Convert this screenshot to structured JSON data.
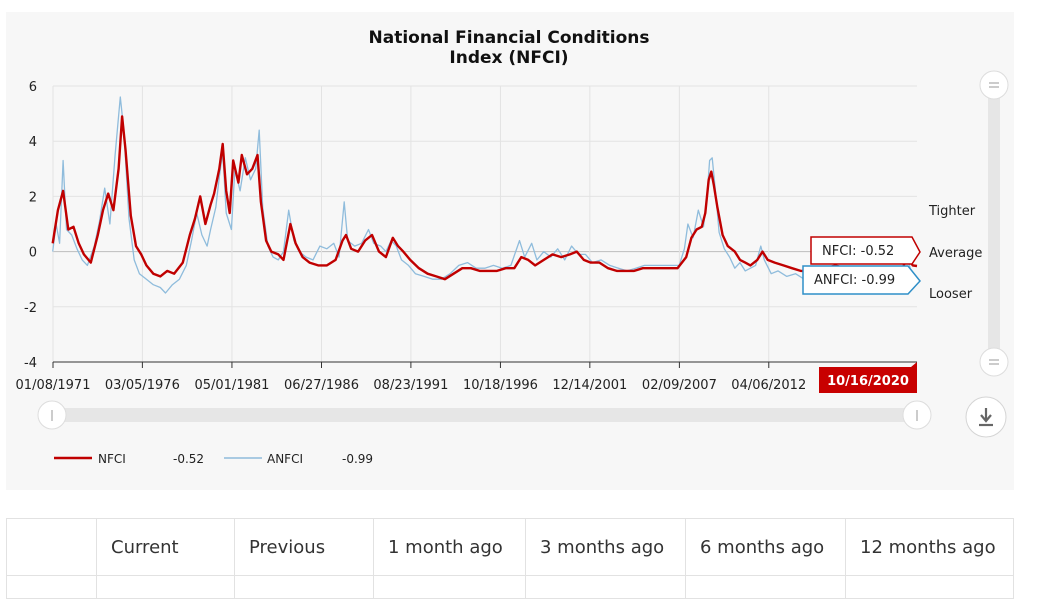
{
  "chart_data": {
    "type": "line",
    "title": [
      "National Financial Conditions",
      "Index (NFCI)"
    ],
    "ylim": [
      -4,
      6
    ],
    "yticks": [
      -4,
      -2,
      0,
      2,
      4,
      6
    ],
    "xlim": [
      1971.02,
      2020.8
    ],
    "xtick_labels": [
      "01/08/1971",
      "03/05/1976",
      "05/01/1981",
      "06/27/1986",
      "08/23/1991",
      "10/18/1996",
      "12/14/2001",
      "02/09/2007",
      "04/06/2012"
    ],
    "xtick_positions": [
      1971.02,
      1976.17,
      1981.33,
      1986.49,
      1991.64,
      1996.8,
      2001.95,
      2007.11,
      2012.26
    ],
    "grid": true,
    "right_labels": [
      "Tighter",
      "Average",
      "Looser"
    ],
    "current_date": "10/16/2020",
    "series": [
      {
        "name": "NFCI",
        "color": "#c00000",
        "latest": "-0.52",
        "points": [
          [
            1971.0,
            0.3
          ],
          [
            1971.3,
            1.5
          ],
          [
            1971.6,
            2.2
          ],
          [
            1971.9,
            0.8
          ],
          [
            1972.2,
            0.9
          ],
          [
            1972.5,
            0.3
          ],
          [
            1972.8,
            -0.1
          ],
          [
            1973.2,
            -0.4
          ],
          [
            1973.6,
            0.6
          ],
          [
            1973.9,
            1.5
          ],
          [
            1974.2,
            2.1
          ],
          [
            1974.5,
            1.5
          ],
          [
            1974.8,
            3.0
          ],
          [
            1975.0,
            4.9
          ],
          [
            1975.2,
            3.7
          ],
          [
            1975.5,
            1.3
          ],
          [
            1975.8,
            0.2
          ],
          [
            1976.1,
            -0.1
          ],
          [
            1976.4,
            -0.5
          ],
          [
            1976.8,
            -0.8
          ],
          [
            1977.2,
            -0.9
          ],
          [
            1977.6,
            -0.7
          ],
          [
            1978.0,
            -0.8
          ],
          [
            1978.5,
            -0.4
          ],
          [
            1978.9,
            0.6
          ],
          [
            1979.2,
            1.2
          ],
          [
            1979.5,
            2.0
          ],
          [
            1979.8,
            1.0
          ],
          [
            1980.1,
            1.7
          ],
          [
            1980.3,
            2.1
          ],
          [
            1980.6,
            3.0
          ],
          [
            1980.8,
            3.9
          ],
          [
            1981.0,
            2.2
          ],
          [
            1981.2,
            1.4
          ],
          [
            1981.4,
            3.3
          ],
          [
            1981.7,
            2.5
          ],
          [
            1981.9,
            3.5
          ],
          [
            1982.2,
            2.8
          ],
          [
            1982.5,
            3.0
          ],
          [
            1982.8,
            3.5
          ],
          [
            1983.0,
            1.8
          ],
          [
            1983.3,
            0.4
          ],
          [
            1983.6,
            0.0
          ],
          [
            1984.0,
            -0.1
          ],
          [
            1984.3,
            -0.3
          ],
          [
            1984.7,
            1.0
          ],
          [
            1985.0,
            0.3
          ],
          [
            1985.4,
            -0.2
          ],
          [
            1985.8,
            -0.4
          ],
          [
            1986.3,
            -0.5
          ],
          [
            1986.8,
            -0.5
          ],
          [
            1987.3,
            -0.3
          ],
          [
            1987.7,
            0.4
          ],
          [
            1987.9,
            0.6
          ],
          [
            1988.2,
            0.1
          ],
          [
            1988.6,
            0.0
          ],
          [
            1989.0,
            0.4
          ],
          [
            1989.4,
            0.6
          ],
          [
            1989.8,
            0.0
          ],
          [
            1990.2,
            -0.2
          ],
          [
            1990.6,
            0.5
          ],
          [
            1990.9,
            0.2
          ],
          [
            1991.2,
            0.0
          ],
          [
            1991.6,
            -0.3
          ],
          [
            1992.1,
            -0.6
          ],
          [
            1992.6,
            -0.8
          ],
          [
            1993.1,
            -0.9
          ],
          [
            1993.6,
            -1.0
          ],
          [
            1994.1,
            -0.8
          ],
          [
            1994.6,
            -0.6
          ],
          [
            1995.1,
            -0.6
          ],
          [
            1995.6,
            -0.7
          ],
          [
            1996.1,
            -0.7
          ],
          [
            1996.6,
            -0.7
          ],
          [
            1997.1,
            -0.6
          ],
          [
            1997.6,
            -0.6
          ],
          [
            1998.0,
            -0.2
          ],
          [
            1998.4,
            -0.3
          ],
          [
            1998.8,
            -0.5
          ],
          [
            1999.3,
            -0.3
          ],
          [
            1999.8,
            -0.1
          ],
          [
            2000.3,
            -0.2
          ],
          [
            2000.8,
            -0.1
          ],
          [
            2001.2,
            0.0
          ],
          [
            2001.6,
            -0.3
          ],
          [
            2002.0,
            -0.4
          ],
          [
            2002.5,
            -0.4
          ],
          [
            2003.0,
            -0.6
          ],
          [
            2003.5,
            -0.7
          ],
          [
            2004.0,
            -0.7
          ],
          [
            2004.5,
            -0.7
          ],
          [
            2005.0,
            -0.6
          ],
          [
            2005.5,
            -0.6
          ],
          [
            2006.0,
            -0.6
          ],
          [
            2006.5,
            -0.6
          ],
          [
            2007.0,
            -0.6
          ],
          [
            2007.5,
            -0.2
          ],
          [
            2007.8,
            0.5
          ],
          [
            2008.1,
            0.8
          ],
          [
            2008.4,
            0.9
          ],
          [
            2008.6,
            1.4
          ],
          [
            2008.8,
            2.6
          ],
          [
            2008.95,
            2.9
          ],
          [
            2009.1,
            2.4
          ],
          [
            2009.3,
            1.6
          ],
          [
            2009.6,
            0.6
          ],
          [
            2009.9,
            0.2
          ],
          [
            2010.3,
            0.0
          ],
          [
            2010.6,
            -0.3
          ],
          [
            2010.9,
            -0.4
          ],
          [
            2011.2,
            -0.5
          ],
          [
            2011.6,
            -0.3
          ],
          [
            2011.9,
            0.0
          ],
          [
            2012.2,
            -0.3
          ],
          [
            2012.6,
            -0.4
          ],
          [
            2013.1,
            -0.5
          ],
          [
            2013.6,
            -0.6
          ],
          [
            2014.1,
            -0.7
          ],
          [
            2014.6,
            -0.7
          ],
          [
            2015.1,
            -0.7
          ],
          [
            2015.6,
            -0.6
          ],
          [
            2016.1,
            -0.5
          ],
          [
            2016.6,
            -0.6
          ],
          [
            2017.1,
            -0.7
          ],
          [
            2017.6,
            -0.8
          ],
          [
            2018.1,
            -0.8
          ],
          [
            2018.6,
            -0.7
          ],
          [
            2019.1,
            -0.6
          ],
          [
            2019.6,
            -0.6
          ],
          [
            2020.0,
            -0.6
          ],
          [
            2020.2,
            -0.1
          ],
          [
            2020.35,
            -0.3
          ],
          [
            2020.55,
            -0.5
          ],
          [
            2020.8,
            -0.52
          ]
        ]
      },
      {
        "name": "ANFCI",
        "color": "#8fbcdc",
        "latest": "-0.99",
        "points": [
          [
            1971.0,
            0.0
          ],
          [
            1971.2,
            1.0
          ],
          [
            1971.4,
            0.3
          ],
          [
            1971.6,
            3.3
          ],
          [
            1971.8,
            0.8
          ],
          [
            1972.1,
            0.6
          ],
          [
            1972.4,
            0.1
          ],
          [
            1972.7,
            -0.3
          ],
          [
            1973.0,
            -0.5
          ],
          [
            1973.4,
            0.2
          ],
          [
            1973.7,
            1.1
          ],
          [
            1974.0,
            2.3
          ],
          [
            1974.3,
            1.0
          ],
          [
            1974.6,
            3.5
          ],
          [
            1974.9,
            5.6
          ],
          [
            1975.1,
            4.4
          ],
          [
            1975.4,
            1.2
          ],
          [
            1975.7,
            -0.3
          ],
          [
            1976.0,
            -0.8
          ],
          [
            1976.4,
            -1.0
          ],
          [
            1976.8,
            -1.2
          ],
          [
            1977.2,
            -1.3
          ],
          [
            1977.5,
            -1.5
          ],
          [
            1977.9,
            -1.2
          ],
          [
            1978.3,
            -1.0
          ],
          [
            1978.7,
            -0.5
          ],
          [
            1979.0,
            0.4
          ],
          [
            1979.3,
            1.4
          ],
          [
            1979.6,
            0.6
          ],
          [
            1979.9,
            0.2
          ],
          [
            1980.1,
            0.8
          ],
          [
            1980.4,
            1.6
          ],
          [
            1980.6,
            2.7
          ],
          [
            1980.8,
            3.6
          ],
          [
            1981.0,
            1.4
          ],
          [
            1981.3,
            0.8
          ],
          [
            1981.5,
            3.0
          ],
          [
            1981.8,
            2.2
          ],
          [
            1982.1,
            3.4
          ],
          [
            1982.4,
            2.6
          ],
          [
            1982.7,
            3.0
          ],
          [
            1982.9,
            4.4
          ],
          [
            1983.1,
            1.6
          ],
          [
            1983.4,
            0.2
          ],
          [
            1983.7,
            -0.2
          ],
          [
            1984.0,
            -0.3
          ],
          [
            1984.3,
            0.0
          ],
          [
            1984.6,
            1.5
          ],
          [
            1984.9,
            0.4
          ],
          [
            1985.2,
            0.0
          ],
          [
            1985.6,
            -0.2
          ],
          [
            1986.0,
            -0.3
          ],
          [
            1986.4,
            0.2
          ],
          [
            1986.8,
            0.1
          ],
          [
            1987.2,
            0.3
          ],
          [
            1987.5,
            -0.2
          ],
          [
            1987.8,
            1.8
          ],
          [
            1988.0,
            0.4
          ],
          [
            1988.4,
            0.2
          ],
          [
            1988.8,
            0.3
          ],
          [
            1989.2,
            0.8
          ],
          [
            1989.5,
            0.3
          ],
          [
            1989.9,
            0.2
          ],
          [
            1990.2,
            0.0
          ],
          [
            1990.5,
            0.4
          ],
          [
            1990.8,
            0.2
          ],
          [
            1991.1,
            -0.3
          ],
          [
            1991.5,
            -0.5
          ],
          [
            1991.9,
            -0.8
          ],
          [
            1992.4,
            -0.9
          ],
          [
            1992.9,
            -1.0
          ],
          [
            1993.4,
            -1.0
          ],
          [
            1993.9,
            -0.8
          ],
          [
            1994.4,
            -0.5
          ],
          [
            1994.9,
            -0.4
          ],
          [
            1995.4,
            -0.6
          ],
          [
            1995.9,
            -0.6
          ],
          [
            1996.4,
            -0.5
          ],
          [
            1996.9,
            -0.6
          ],
          [
            1997.4,
            -0.5
          ],
          [
            1997.9,
            0.4
          ],
          [
            1998.2,
            -0.2
          ],
          [
            1998.6,
            0.3
          ],
          [
            1998.9,
            -0.3
          ],
          [
            1999.3,
            0.0
          ],
          [
            1999.7,
            -0.2
          ],
          [
            2000.1,
            0.1
          ],
          [
            2000.5,
            -0.3
          ],
          [
            2000.9,
            0.2
          ],
          [
            2001.3,
            -0.1
          ],
          [
            2001.7,
            -0.1
          ],
          [
            2002.1,
            -0.4
          ],
          [
            2002.6,
            -0.3
          ],
          [
            2003.1,
            -0.5
          ],
          [
            2003.6,
            -0.6
          ],
          [
            2004.1,
            -0.7
          ],
          [
            2004.6,
            -0.6
          ],
          [
            2005.1,
            -0.5
          ],
          [
            2005.6,
            -0.5
          ],
          [
            2006.1,
            -0.5
          ],
          [
            2006.6,
            -0.5
          ],
          [
            2007.1,
            -0.5
          ],
          [
            2007.4,
            0.1
          ],
          [
            2007.6,
            1.0
          ],
          [
            2007.9,
            0.5
          ],
          [
            2008.2,
            1.5
          ],
          [
            2008.5,
            0.9
          ],
          [
            2008.7,
            2.0
          ],
          [
            2008.85,
            3.3
          ],
          [
            2009.0,
            3.4
          ],
          [
            2009.2,
            2.1
          ],
          [
            2009.4,
            0.7
          ],
          [
            2009.7,
            0.1
          ],
          [
            2010.0,
            -0.2
          ],
          [
            2010.3,
            -0.6
          ],
          [
            2010.6,
            -0.4
          ],
          [
            2010.9,
            -0.7
          ],
          [
            2011.2,
            -0.6
          ],
          [
            2011.5,
            -0.5
          ],
          [
            2011.8,
            0.2
          ],
          [
            2012.0,
            -0.3
          ],
          [
            2012.4,
            -0.8
          ],
          [
            2012.8,
            -0.7
          ],
          [
            2013.3,
            -0.9
          ],
          [
            2013.8,
            -0.8
          ],
          [
            2014.3,
            -1.0
          ],
          [
            2014.8,
            -0.9
          ],
          [
            2015.3,
            -1.0
          ],
          [
            2015.8,
            -0.8
          ],
          [
            2016.2,
            -0.7
          ],
          [
            2016.7,
            -0.9
          ],
          [
            2017.2,
            -1.0
          ],
          [
            2017.7,
            -1.0
          ],
          [
            2018.2,
            -1.0
          ],
          [
            2018.7,
            -0.9
          ],
          [
            2019.2,
            -0.9
          ],
          [
            2019.7,
            -0.9
          ],
          [
            2020.0,
            -0.8
          ],
          [
            2020.2,
            0.1
          ],
          [
            2020.4,
            -0.6
          ],
          [
            2020.6,
            -0.9
          ],
          [
            2020.8,
            -0.99
          ]
        ]
      }
    ],
    "tooltips": [
      {
        "label": "NFCI: -0.52",
        "color": "#c00000"
      },
      {
        "label": "ANFCI: -0.99",
        "color": "#2f8fc8"
      }
    ]
  },
  "table": {
    "headers": [
      "",
      "Current",
      "Previous",
      "1 month ago",
      "3 months ago",
      "6 months ago",
      "12 months ago"
    ]
  },
  "controls": {
    "download_icon": "download-icon",
    "range_handle_icon": "slider-handle-icon",
    "vertical_handle_icon": "scroll-handle-icon"
  }
}
